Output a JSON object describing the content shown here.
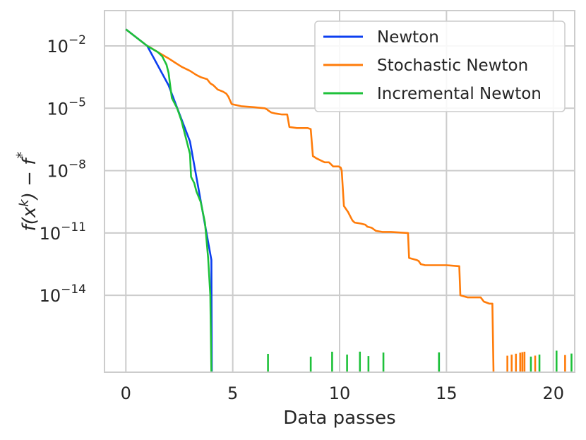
{
  "chart_data": {
    "type": "line",
    "xlabel": "Data passes",
    "ylabel": "f(x^k) − f*",
    "xlim": [
      -1,
      21
    ],
    "ylim_log10": [
      -17.7,
      -0.3
    ],
    "yscale": "log",
    "grid": true,
    "legend_position": "top-right",
    "x_ticks": [
      0,
      5,
      10,
      15,
      20
    ],
    "y_ticks": [
      {
        "exp": -2,
        "label": "10⁻²"
      },
      {
        "exp": -5,
        "label": "10⁻⁵"
      },
      {
        "exp": -8,
        "label": "10⁻⁸"
      },
      {
        "exp": -11,
        "label": "10⁻¹¹"
      },
      {
        "exp": -14,
        "label": "10⁻¹⁴"
      }
    ],
    "series": [
      {
        "name": "Newton",
        "color": "#0c3ff0",
        "points": [
          [
            0,
            -1.2
          ],
          [
            1,
            -2.0
          ],
          [
            2,
            -3.9
          ],
          [
            3,
            -6.6
          ],
          [
            4,
            -12.3
          ],
          [
            4.02,
            -17.7
          ]
        ],
        "spikes": [
          15.0
        ]
      },
      {
        "name": "Stochastic Newton",
        "color": "#ff7c0a",
        "points": [
          [
            0,
            -1.2
          ],
          [
            1,
            -2.0
          ],
          [
            1.1,
            -2.05
          ],
          [
            1.5,
            -2.3
          ],
          [
            2,
            -2.6
          ],
          [
            2.3,
            -2.8
          ],
          [
            2.6,
            -3.0
          ],
          [
            3.0,
            -3.2
          ],
          [
            3.3,
            -3.4
          ],
          [
            3.5,
            -3.5
          ],
          [
            3.8,
            -3.6
          ],
          [
            3.95,
            -3.8
          ],
          [
            4.1,
            -3.9
          ],
          [
            4.3,
            -4.1
          ],
          [
            4.55,
            -4.2
          ],
          [
            4.7,
            -4.3
          ],
          [
            4.8,
            -4.45
          ],
          [
            4.95,
            -4.8
          ],
          [
            5.4,
            -4.9
          ],
          [
            6.0,
            -4.95
          ],
          [
            6.5,
            -5.0
          ],
          [
            6.6,
            -5.05
          ],
          [
            6.65,
            -5.1
          ],
          [
            6.8,
            -5.2
          ],
          [
            7.0,
            -5.25
          ],
          [
            7.3,
            -5.3
          ],
          [
            7.55,
            -5.3
          ],
          [
            7.65,
            -5.9
          ],
          [
            8.0,
            -5.95
          ],
          [
            8.5,
            -5.95
          ],
          [
            8.65,
            -6.0
          ],
          [
            8.75,
            -7.3
          ],
          [
            8.9,
            -7.4
          ],
          [
            9.1,
            -7.5
          ],
          [
            9.3,
            -7.6
          ],
          [
            9.5,
            -7.6
          ],
          [
            9.6,
            -7.7
          ],
          [
            9.7,
            -7.8
          ],
          [
            9.95,
            -7.8
          ],
          [
            10.05,
            -7.85
          ],
          [
            10.1,
            -8.0
          ],
          [
            10.2,
            -9.7
          ],
          [
            10.4,
            -10.0
          ],
          [
            10.5,
            -10.2
          ],
          [
            10.6,
            -10.4
          ],
          [
            10.7,
            -10.5
          ],
          [
            11.0,
            -10.55
          ],
          [
            11.2,
            -10.6
          ],
          [
            11.3,
            -10.7
          ],
          [
            11.5,
            -10.75
          ],
          [
            11.7,
            -10.9
          ],
          [
            12.0,
            -10.95
          ],
          [
            12.4,
            -10.95
          ],
          [
            13.2,
            -11.0
          ],
          [
            13.25,
            -12.2
          ],
          [
            13.6,
            -12.3
          ],
          [
            13.7,
            -12.35
          ],
          [
            13.8,
            -12.5
          ],
          [
            14.0,
            -12.55
          ],
          [
            15.0,
            -12.55
          ],
          [
            15.6,
            -12.6
          ],
          [
            15.65,
            -14.0
          ],
          [
            16.0,
            -14.1
          ],
          [
            16.6,
            -14.1
          ],
          [
            16.75,
            -14.3
          ],
          [
            17.0,
            -14.4
          ],
          [
            17.15,
            -14.4
          ],
          [
            17.2,
            -17.7
          ]
        ],
        "spikes": [
          18.2,
          18.4,
          18.6,
          18.8,
          18.9,
          19.0,
          19.5,
          20.9
        ]
      },
      {
        "name": "Incremental Newton",
        "color": "#1ec13a",
        "points": [
          [
            0,
            -1.2
          ],
          [
            1,
            -2.0
          ],
          [
            1.5,
            -2.3
          ],
          [
            1.7,
            -2.5
          ],
          [
            1.9,
            -2.9
          ],
          [
            2.0,
            -3.3
          ],
          [
            2.1,
            -4.1
          ],
          [
            2.15,
            -4.5
          ],
          [
            2.4,
            -5.0
          ],
          [
            2.5,
            -5.3
          ],
          [
            2.6,
            -5.6
          ],
          [
            2.85,
            -6.6
          ],
          [
            3.0,
            -7.2
          ],
          [
            3.05,
            -8.3
          ],
          [
            3.2,
            -8.6
          ],
          [
            3.3,
            -9.0
          ],
          [
            3.5,
            -9.5
          ],
          [
            3.7,
            -10.5
          ],
          [
            3.85,
            -12.2
          ],
          [
            3.95,
            -14.0
          ],
          [
            4.0,
            -17.7
          ]
        ],
        "spikes": [
          7.0,
          9.0,
          10.0,
          10.7,
          11.3,
          11.7,
          12.4,
          15.0,
          19.3,
          19.7,
          20.5,
          21.2
        ]
      }
    ]
  }
}
